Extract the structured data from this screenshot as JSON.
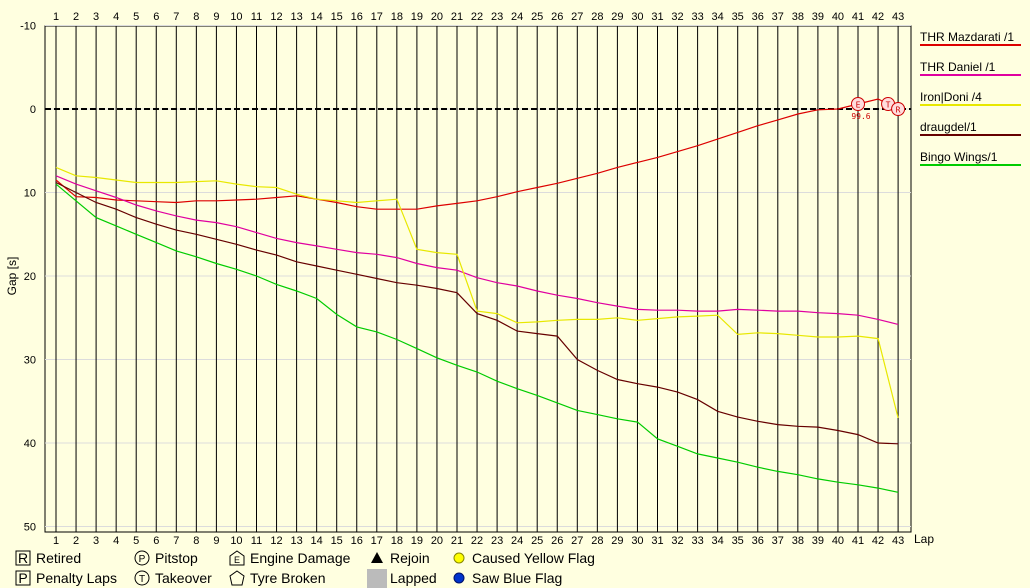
{
  "chart_data": {
    "type": "line",
    "xlabel": "Lap",
    "ylabel": "Gap [s]",
    "x": [
      1,
      2,
      3,
      4,
      5,
      6,
      7,
      8,
      9,
      10,
      11,
      12,
      13,
      14,
      15,
      16,
      17,
      18,
      19,
      20,
      21,
      22,
      23,
      24,
      25,
      26,
      27,
      28,
      29,
      30,
      31,
      32,
      33,
      34,
      35,
      36,
      37,
      38,
      39,
      40,
      41,
      42,
      43
    ],
    "xlim": [
      1,
      43.5
    ],
    "ylim": [
      -10,
      50
    ],
    "y_inverted": true,
    "yticks": [
      -10,
      0,
      10,
      20,
      30,
      40,
      50
    ],
    "grid": true,
    "legend_position": "right",
    "series": [
      {
        "name": "THR Mazdarati /1",
        "color": "#dd0000",
        "values": [
          8.5,
          10.5,
          10.6,
          10.9,
          11.0,
          11.1,
          11.2,
          11.0,
          11.0,
          10.9,
          10.8,
          10.6,
          10.4,
          10.8,
          11.2,
          11.7,
          12.0,
          12.0,
          12.0,
          11.6,
          11.3,
          11.0,
          10.5,
          9.9,
          9.4,
          8.9,
          8.3,
          7.7,
          7.0,
          6.4,
          5.8,
          5.1,
          4.4,
          3.6,
          2.8,
          2.0,
          1.3,
          0.6,
          0.1,
          0.0,
          -0.6,
          -1.2,
          0.0
        ],
        "markers": [
          {
            "lap": 41,
            "symbol": "E",
            "label": "99.6"
          },
          {
            "lap": 42.5,
            "symbol": "T"
          },
          {
            "lap": 43,
            "symbol": "R"
          }
        ]
      },
      {
        "name": "THR Daniel /1",
        "color": "#e000a0",
        "values": [
          8.0,
          9.0,
          9.8,
          10.6,
          11.5,
          12.2,
          12.8,
          13.3,
          13.6,
          14.1,
          14.8,
          15.5,
          16.0,
          16.4,
          16.8,
          17.2,
          17.4,
          17.8,
          18.5,
          19.0,
          19.3,
          20.2,
          20.8,
          21.2,
          21.8,
          22.3,
          22.7,
          23.2,
          23.6,
          24.0,
          24.1,
          24.1,
          24.2,
          24.2,
          24.0,
          24.1,
          24.2,
          24.2,
          24.4,
          24.5,
          24.7,
          25.2,
          25.8
        ]
      },
      {
        "name": "Iron|Doni /4",
        "color": "#e8e800",
        "values": [
          7.0,
          8.0,
          8.2,
          8.5,
          8.8,
          8.8,
          8.8,
          8.7,
          8.6,
          9.0,
          9.3,
          9.4,
          10.2,
          10.8,
          11.0,
          11.2,
          11.0,
          10.8,
          16.8,
          17.2,
          17.4,
          24.2,
          24.5,
          25.6,
          25.5,
          25.3,
          25.2,
          25.2,
          25.0,
          25.3,
          25.1,
          24.9,
          24.8,
          24.7,
          27.0,
          26.8,
          26.9,
          27.1,
          27.3,
          27.3,
          27.2,
          27.5,
          37.0
        ]
      },
      {
        "name": "draugdel/1",
        "color": "#660000",
        "values": [
          8.8,
          10.0,
          11.2,
          12.0,
          13.0,
          13.8,
          14.5,
          15.0,
          15.6,
          16.2,
          16.9,
          17.5,
          18.3,
          18.8,
          19.3,
          19.8,
          20.3,
          20.8,
          21.1,
          21.5,
          22.0,
          24.5,
          25.3,
          26.6,
          26.9,
          27.2,
          30.0,
          31.3,
          32.4,
          32.9,
          33.3,
          33.9,
          34.8,
          36.2,
          36.9,
          37.4,
          37.8,
          38.0,
          38.1,
          38.5,
          39.0,
          40.0,
          40.1
        ]
      },
      {
        "name": "Bingo Wings/1",
        "color": "#00cc00",
        "values": [
          9.0,
          11.0,
          13.0,
          14.0,
          15.0,
          16.0,
          17.0,
          17.7,
          18.5,
          19.2,
          20.0,
          21.0,
          21.8,
          22.7,
          24.6,
          26.1,
          26.7,
          27.6,
          28.7,
          29.8,
          30.7,
          31.5,
          32.6,
          33.5,
          34.3,
          35.2,
          36.1,
          36.6,
          37.1,
          37.5,
          39.5,
          40.4,
          41.3,
          41.8,
          42.3,
          42.9,
          43.4,
          43.8,
          44.3,
          44.7,
          45.0,
          45.4,
          45.9
        ]
      }
    ]
  },
  "key": {
    "items": [
      {
        "symbol": "R",
        "label": "Retired"
      },
      {
        "symbol": "P",
        "label": "Pitstop"
      },
      {
        "symbol": "E",
        "label": "Engine Damage"
      },
      {
        "symbol": "tri",
        "label": "Rejoin"
      },
      {
        "symbol": "yellow-dot",
        "label": "Caused Yellow Flag"
      },
      {
        "symbol": "P",
        "label": "Penalty Laps"
      },
      {
        "symbol": "T",
        "label": "Takeover"
      },
      {
        "symbol": "pent",
        "label": "Tyre Broken"
      },
      {
        "symbol": "gray-box",
        "label": "Lapped"
      },
      {
        "symbol": "blue-dot",
        "label": "Saw Blue Flag"
      }
    ]
  }
}
